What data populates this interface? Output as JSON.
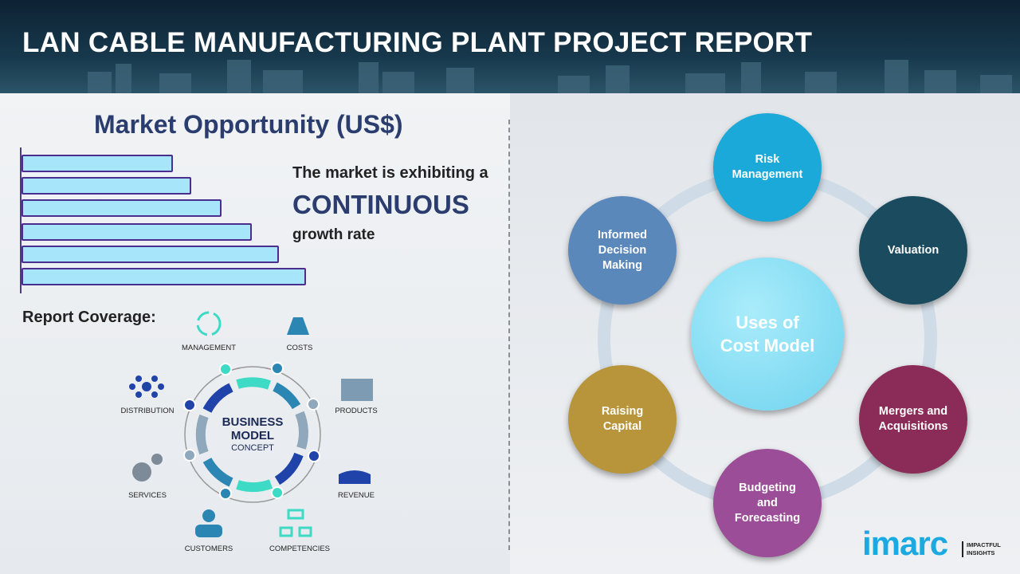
{
  "header": {
    "title": "LAN CABLE MANUFACTURING PLANT PROJECT REPORT"
  },
  "market": {
    "title": "Market Opportunity (US$)",
    "bar_levels": [
      0.5,
      0.56,
      0.66,
      0.76,
      0.85,
      0.94
    ],
    "bar_color": "#a7e5fb",
    "line1": "The market is exhibiting a",
    "highlight": "CONTINUOUS",
    "line3": "growth rate"
  },
  "coverage": {
    "title": "Report Coverage:",
    "center": {
      "line1": "BUSINESS",
      "line2": "MODEL",
      "line3": "CONCEPT"
    },
    "items": [
      {
        "label": "MANAGEMENT",
        "icon": "lightbulb-cycle-icon"
      },
      {
        "label": "COSTS",
        "icon": "money-bag-icon"
      },
      {
        "label": "PRODUCTS",
        "icon": "box-icon"
      },
      {
        "label": "REVENUE",
        "icon": "hand-coins-icon"
      },
      {
        "label": "COMPETENCIES",
        "icon": "hierarchy-icon"
      },
      {
        "label": "CUSTOMERS",
        "icon": "person-icon"
      },
      {
        "label": "SERVICES",
        "icon": "gears-icon"
      },
      {
        "label": "DISTRIBUTION",
        "icon": "network-icon"
      }
    ]
  },
  "uses": {
    "center": "Uses of\nCost Model",
    "nodes": [
      {
        "label": "Risk\nManagement",
        "color": "#1aa9d8"
      },
      {
        "label": "Valuation",
        "color": "#1b4b5f"
      },
      {
        "label": "Mergers and\nAcquisitions",
        "color": "#8b2b57"
      },
      {
        "label": "Budgeting\nand\nForecasting",
        "color": "#9b4d97"
      },
      {
        "label": "Raising\nCapital",
        "color": "#b8953a"
      },
      {
        "label": "Informed\nDecision\nMaking",
        "color": "#5b88ba"
      }
    ]
  },
  "logo": {
    "brand": "imarc",
    "tagline1": "IMPACTFUL",
    "tagline2": "INSIGHTS"
  }
}
